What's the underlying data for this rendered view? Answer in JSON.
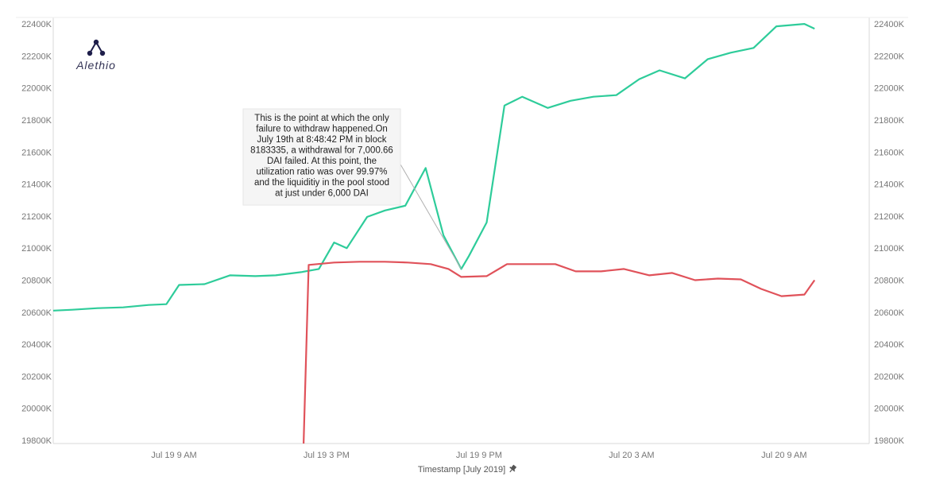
{
  "logo": {
    "text": "Alethio"
  },
  "chart_data": {
    "type": "line",
    "xlabel": "Timestamp [July 2019]",
    "x_tick_labels": [
      "Jul 19 9 AM",
      "Jul 19 3 PM",
      "Jul 19 9 PM",
      "Jul 20 3 AM",
      "Jul 20 9 AM"
    ],
    "y_tick_labels": [
      "19800K",
      "20000K",
      "20200K",
      "20400K",
      "20600K",
      "20800K",
      "21000K",
      "21200K",
      "21400K",
      "21600K",
      "21800K",
      "22000K",
      "22200K",
      "22400K"
    ],
    "ylim": [
      19780,
      22440
    ],
    "xlim_hours": [
      4.25,
      36.35
    ],
    "x_ticks_hours": [
      9,
      15,
      21,
      27,
      33
    ],
    "grid": false,
    "series": [
      {
        "color": "#2ecc9a",
        "points": [
          [
            4.25,
            20610
          ],
          [
            5.0,
            20615
          ],
          [
            6.0,
            20625
          ],
          [
            7.0,
            20630
          ],
          [
            8.0,
            20645
          ],
          [
            8.7,
            20650
          ],
          [
            9.2,
            20770
          ],
          [
            10.2,
            20775
          ],
          [
            11.2,
            20830
          ],
          [
            12.2,
            20825
          ],
          [
            13.0,
            20830
          ],
          [
            14.0,
            20850
          ],
          [
            14.7,
            20870
          ],
          [
            15.3,
            21035
          ],
          [
            15.8,
            21000
          ],
          [
            16.6,
            21195
          ],
          [
            17.3,
            21235
          ],
          [
            18.1,
            21265
          ],
          [
            18.9,
            21500
          ],
          [
            19.6,
            21080
          ],
          [
            20.3,
            20870
          ],
          [
            20.6,
            20950
          ],
          [
            21.3,
            21160
          ],
          [
            22.0,
            21890
          ],
          [
            22.7,
            21945
          ],
          [
            23.7,
            21875
          ],
          [
            24.6,
            21920
          ],
          [
            25.5,
            21945
          ],
          [
            26.4,
            21955
          ],
          [
            27.3,
            22055
          ],
          [
            28.1,
            22110
          ],
          [
            29.1,
            22060
          ],
          [
            30.0,
            22180
          ],
          [
            30.9,
            22220
          ],
          [
            31.8,
            22250
          ],
          [
            32.7,
            22385
          ],
          [
            33.8,
            22400
          ],
          [
            34.2,
            22370
          ]
        ]
      },
      {
        "color": "#e0525a",
        "points": [
          [
            14.1,
            19780
          ],
          [
            14.3,
            20895
          ],
          [
            15.3,
            20910
          ],
          [
            16.3,
            20915
          ],
          [
            17.3,
            20915
          ],
          [
            18.2,
            20910
          ],
          [
            19.1,
            20900
          ],
          [
            19.8,
            20870
          ],
          [
            20.3,
            20820
          ],
          [
            21.3,
            20825
          ],
          [
            22.1,
            20900
          ],
          [
            23.1,
            20900
          ],
          [
            24.0,
            20900
          ],
          [
            24.8,
            20855
          ],
          [
            25.8,
            20855
          ],
          [
            26.7,
            20870
          ],
          [
            27.7,
            20830
          ],
          [
            28.6,
            20845
          ],
          [
            29.5,
            20800
          ],
          [
            30.4,
            20810
          ],
          [
            31.3,
            20805
          ],
          [
            32.1,
            20745
          ],
          [
            32.9,
            20700
          ],
          [
            33.8,
            20710
          ],
          [
            34.2,
            20800
          ]
        ]
      }
    ],
    "annotations": [
      {
        "text": [
          "This is the point at which the only",
          "failure to withdraw happened.On",
          "July 19th at 8:48:42 PM in block",
          "8183335, a withdrawal for 7,000.66",
          "DAI failed. At this point, the",
          "utilization ratio was over 99.97%",
          "and the liquiditiy in the pool stood",
          "at just under 6,000 DAI"
        ],
        "target": [
          20.3,
          20870
        ]
      }
    ]
  }
}
